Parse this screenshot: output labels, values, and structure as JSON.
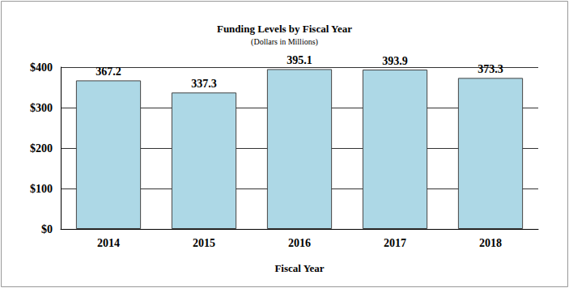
{
  "chart_data": {
    "type": "bar",
    "title": "Funding Levels by Fiscal Year",
    "subtitle": "(Dollars in Millions)",
    "x_label": "Fiscal Year",
    "categories": [
      "2014",
      "2015",
      "2016",
      "2017",
      "2018"
    ],
    "values": [
      367.2,
      337.3,
      395.1,
      393.9,
      373.3
    ],
    "color": "#add8e6",
    "ylim": [
      0,
      400
    ],
    "yticks": [
      {
        "value": 0,
        "label": "$0"
      },
      {
        "value": 100,
        "label": "$100"
      },
      {
        "value": 200,
        "label": "$200"
      },
      {
        "value": 300,
        "label": "$300"
      },
      {
        "value": 400,
        "label": "$400"
      }
    ],
    "grid": true,
    "data_labels": true
  }
}
